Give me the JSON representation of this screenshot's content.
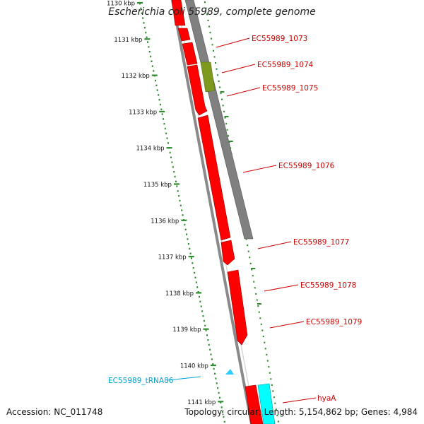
{
  "title": "Escherichia coli 55989, complete genome",
  "footer": {
    "accession": "Accession: NC_011748",
    "summary": "Topology: circular; Length: 5,154,862 bp; Genes: 4,984"
  },
  "colors": {
    "forward_cds": "#ff0000",
    "reverse_cds": "#808080",
    "olive_feature": "#7d9a1e",
    "trna": "#33ccff",
    "cyan_gene": "#00ffff",
    "label_red": "#cc0000",
    "label_cyan": "#00a0d0",
    "ruler": "#2e8b2e",
    "backbone": "#8a8a8a"
  },
  "ruler": {
    "ticks": [
      "1130 kbp",
      "1131 kbp",
      "1132 kbp",
      "1133 kbp",
      "1134 kbp",
      "1135 kbp",
      "1136 kbp",
      "1137 kbp",
      "1138 kbp",
      "1139 kbp",
      "1140 kbp",
      "1141 kbp"
    ]
  },
  "labels": [
    {
      "text": "EC55989_1073",
      "color": "red"
    },
    {
      "text": "EC55989_1074",
      "color": "red"
    },
    {
      "text": "EC55989_1075",
      "color": "red"
    },
    {
      "text": "EC55989_1076",
      "color": "red"
    },
    {
      "text": "EC55989_1077",
      "color": "red"
    },
    {
      "text": "EC55989_1078",
      "color": "red"
    },
    {
      "text": "EC55989_1079",
      "color": "red"
    },
    {
      "text": "EC55989_tRNA86",
      "color": "cyan"
    },
    {
      "text": "hyaA",
      "color": "red"
    }
  ]
}
